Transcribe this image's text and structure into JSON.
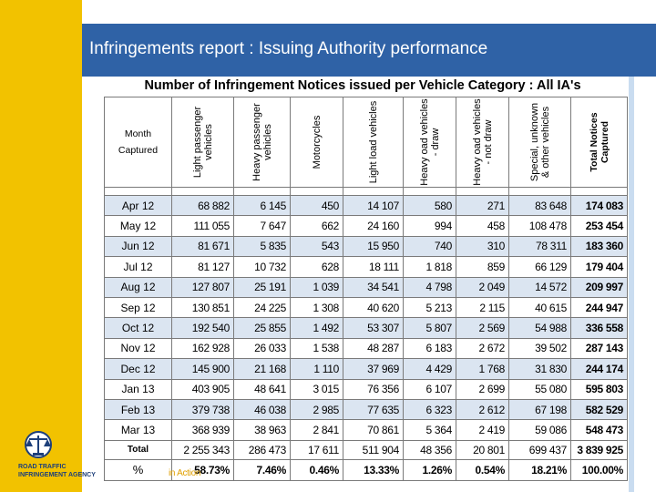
{
  "title": "Infringements report :  Issuing Authority performance",
  "logo": {
    "line1": "ROAD TRAFFIC",
    "line2": "INFRINGEMENT AGENCY"
  },
  "report": {
    "heading": "Number of Infringement Notices issued per Vehicle Category : All IA's",
    "month_header_line1": "Month",
    "month_header_line2": "Captured",
    "columns": [
      {
        "label": "Light passenger vehicles"
      },
      {
        "label": "Heavy passenger vehicles"
      },
      {
        "label": "Motorcycles"
      },
      {
        "label": "Light load vehicles"
      },
      {
        "label": "Heavy oad vehicles - draw"
      },
      {
        "label": "Heavy oad vehicles - not draw"
      },
      {
        "label": "Special, unknown & other vehicles"
      },
      {
        "label": "Total Notices Captured"
      }
    ],
    "rows": [
      {
        "month": "Apr 12",
        "v": [
          "68 882",
          "6 145",
          "450",
          "14 107",
          "580",
          "271",
          "83 648",
          "174 083"
        ]
      },
      {
        "month": "May 12",
        "v": [
          "111 055",
          "7 647",
          "662",
          "24 160",
          "994",
          "458",
          "108 478",
          "253 454"
        ]
      },
      {
        "month": "Jun 12",
        "v": [
          "81 671",
          "5 835",
          "543",
          "15 950",
          "740",
          "310",
          "78 311",
          "183 360"
        ]
      },
      {
        "month": "Jul 12",
        "v": [
          "81 127",
          "10 732",
          "628",
          "18 111",
          "1 818",
          "859",
          "66 129",
          "179 404"
        ]
      },
      {
        "month": "Aug 12",
        "v": [
          "127 807",
          "25 191",
          "1 039",
          "34 541",
          "4 798",
          "2 049",
          "14 572",
          "209 997"
        ]
      },
      {
        "month": "Sep 12",
        "v": [
          "130 851",
          "24 225",
          "1 308",
          "40 620",
          "5 213",
          "2 115",
          "40 615",
          "244 947"
        ]
      },
      {
        "month": "Oct 12",
        "v": [
          "192 540",
          "25 855",
          "1 492",
          "53 307",
          "5 807",
          "2 569",
          "54 988",
          "336 558"
        ]
      },
      {
        "month": "Nov 12",
        "v": [
          "162 928",
          "26 033",
          "1 538",
          "48 287",
          "6 183",
          "2 672",
          "39 502",
          "287 143"
        ]
      },
      {
        "month": "Dec 12",
        "v": [
          "145 900",
          "21 168",
          "1 110",
          "37 969",
          "4 429",
          "1 768",
          "31 830",
          "244 174"
        ]
      },
      {
        "month": "Jan 13",
        "v": [
          "403 905",
          "48 641",
          "3 015",
          "76 356",
          "6 107",
          "2 699",
          "55 080",
          "595 803"
        ]
      },
      {
        "month": "Feb 13",
        "v": [
          "379 738",
          "46 038",
          "2 985",
          "77 635",
          "6 323",
          "2 612",
          "67 198",
          "582 529"
        ]
      },
      {
        "month": "Mar 13",
        "v": [
          "368 939",
          "38 963",
          "2 841",
          "70 861",
          "5 364",
          "2 419",
          "59 086",
          "548 473"
        ]
      }
    ],
    "total": {
      "label": "Total",
      "v": [
        "2 255 343",
        "286 473",
        "17 611",
        "511 904",
        "48 356",
        "20 801",
        "699 437",
        "3 839 925"
      ]
    },
    "percent": {
      "label": "%",
      "v": [
        "58.73%",
        "7.46%",
        "0.46%",
        "13.33%",
        "1.26%",
        "0.54%",
        "18.21%",
        "100.00%"
      ]
    },
    "watermark": "in Action"
  },
  "colors": {
    "title_bar": "#2f62a6",
    "accent_bar": "#f2c200",
    "row_stripe": "#dbe5f1"
  }
}
